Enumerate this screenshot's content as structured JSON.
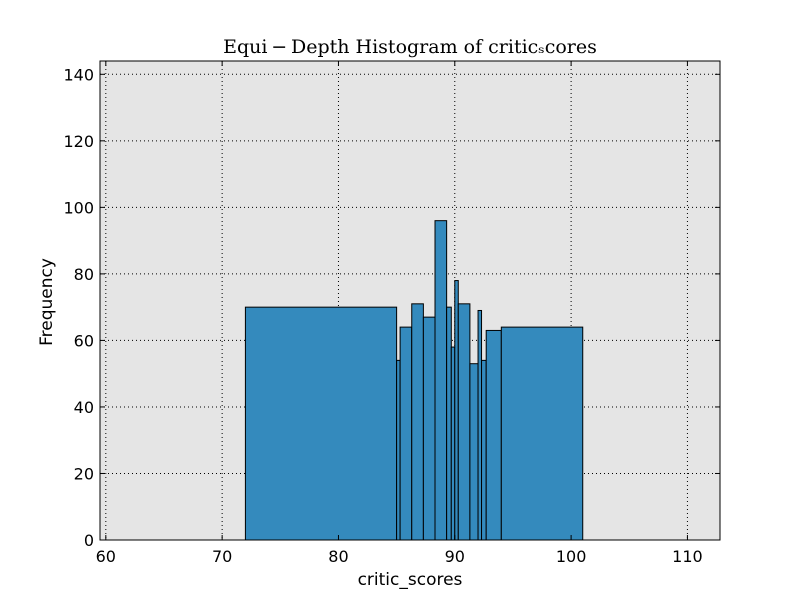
{
  "chart_data": {
    "type": "bar",
    "title": "Equi − Depth Histogram of criticₛcores",
    "xlabel": "critic_scores",
    "ylabel": "Frequency",
    "xlim": [
      59.5,
      112.8
    ],
    "ylim": [
      0,
      144
    ],
    "xticks": [
      60,
      70,
      80,
      90,
      100,
      110
    ],
    "yticks": [
      0,
      20,
      40,
      60,
      80,
      100,
      120,
      140
    ],
    "grid": true,
    "legend": "none",
    "bins": [
      {
        "x0": 72.0,
        "x1": 85.0,
        "value": 70
      },
      {
        "x0": 85.0,
        "x1": 85.3,
        "value": 54
      },
      {
        "x0": 85.3,
        "x1": 86.3,
        "value": 64
      },
      {
        "x0": 86.3,
        "x1": 87.3,
        "value": 71
      },
      {
        "x0": 87.3,
        "x1": 88.3,
        "value": 67
      },
      {
        "x0": 88.3,
        "x1": 89.3,
        "value": 96
      },
      {
        "x0": 89.3,
        "x1": 89.7,
        "value": 70
      },
      {
        "x0": 89.7,
        "x1": 90.0,
        "value": 58
      },
      {
        "x0": 90.0,
        "x1": 90.3,
        "value": 78
      },
      {
        "x0": 90.3,
        "x1": 91.3,
        "value": 71
      },
      {
        "x0": 91.3,
        "x1": 92.0,
        "value": 53
      },
      {
        "x0": 92.0,
        "x1": 92.3,
        "value": 69
      },
      {
        "x0": 92.3,
        "x1": 92.7,
        "value": 54
      },
      {
        "x0": 92.7,
        "x1": 94.0,
        "value": 63
      },
      {
        "x0": 94.0,
        "x1": 101.0,
        "value": 64
      }
    ]
  },
  "colors": {
    "bar_fill": "#348abd",
    "plot_background": "#e5e5e5",
    "edge": "#000000"
  }
}
